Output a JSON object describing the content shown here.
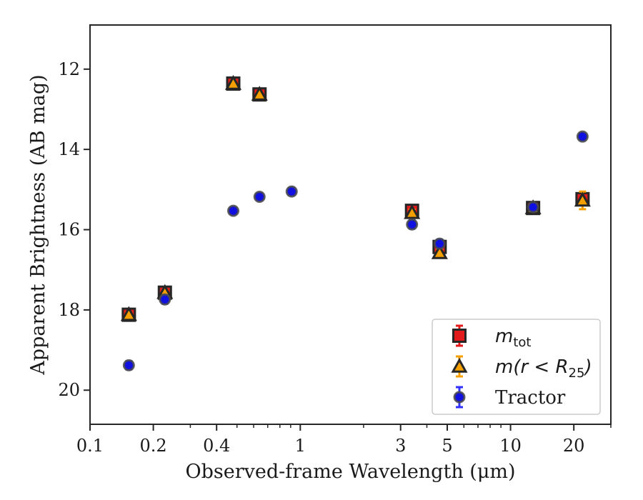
{
  "chart_data": {
    "type": "scatter",
    "title": "",
    "xlabel": "Observed-frame Wavelength (μm)",
    "ylabel": "Apparent Brightness (AB mag)",
    "x_scale": "log",
    "y_inverted": true,
    "xlim": [
      0.1,
      30
    ],
    "ylim": [
      20.85,
      10.9
    ],
    "x_ticks": [
      {
        "value": 0.1,
        "label": "0.1"
      },
      {
        "value": 0.2,
        "label": "0.2"
      },
      {
        "value": 0.4,
        "label": "0.4"
      },
      {
        "value": 1,
        "label": "1"
      },
      {
        "value": 3,
        "label": "3"
      },
      {
        "value": 5,
        "label": "5"
      },
      {
        "value": 10,
        "label": "10"
      },
      {
        "value": 20,
        "label": "20"
      }
    ],
    "y_ticks": [
      {
        "value": 12,
        "label": "12"
      },
      {
        "value": 14,
        "label": "14"
      },
      {
        "value": 16,
        "label": "16"
      },
      {
        "value": 18,
        "label": "18"
      },
      {
        "value": 20,
        "label": "20"
      }
    ],
    "grid": false,
    "legend_position": "bottom-right",
    "series": [
      {
        "name": "m_tot",
        "label_main": "m",
        "label_sub": "tot",
        "marker": "square",
        "color": "#e31a1c",
        "error_color": "#e31a1c",
        "points": [
          {
            "x": 0.153,
            "y": 18.12,
            "err": 0.1
          },
          {
            "x": 0.227,
            "y": 17.57,
            "err": 0.1
          },
          {
            "x": 0.48,
            "y": 12.36,
            "err": 0.08
          },
          {
            "x": 0.64,
            "y": 12.63,
            "err": 0.08
          },
          {
            "x": 3.4,
            "y": 15.53,
            "err": 0.1
          },
          {
            "x": 4.6,
            "y": 16.43,
            "err": 0.12
          },
          {
            "x": 12.8,
            "y": 15.46,
            "err": 0.08
          },
          {
            "x": 22.0,
            "y": 15.24,
            "err": 0.12
          }
        ]
      },
      {
        "name": "m(r<R_25)",
        "label_main": "m(r < R",
        "label_sub": "25",
        "label_tail": ")",
        "marker": "triangle",
        "color": "#f5a000",
        "error_color": "#f5a000",
        "points": [
          {
            "x": 0.153,
            "y": 18.12,
            "err": 0.05
          },
          {
            "x": 0.227,
            "y": 17.57,
            "err": 0.05
          },
          {
            "x": 0.48,
            "y": 12.36,
            "err": 0.05
          },
          {
            "x": 0.64,
            "y": 12.63,
            "err": 0.05
          },
          {
            "x": 3.4,
            "y": 15.58,
            "err": 0.08
          },
          {
            "x": 4.6,
            "y": 16.58,
            "err": 0.1
          },
          {
            "x": 12.8,
            "y": 15.46,
            "err": 0.05
          },
          {
            "x": 22.0,
            "y": 15.27,
            "err": 0.22
          }
        ]
      },
      {
        "name": "Tractor",
        "marker": "circle",
        "color": "#1010e0",
        "error_color": "#3030ff",
        "points": [
          {
            "x": 0.153,
            "y": 19.38,
            "err": 0.1
          },
          {
            "x": 0.227,
            "y": 17.74,
            "err": 0.1
          },
          {
            "x": 0.48,
            "y": 15.53,
            "err": 0.08
          },
          {
            "x": 0.64,
            "y": 15.18,
            "err": 0.08
          },
          {
            "x": 0.91,
            "y": 15.05,
            "err": 0.08
          },
          {
            "x": 3.4,
            "y": 15.87,
            "err": 0.1
          },
          {
            "x": 4.6,
            "y": 16.35,
            "err": 0.1
          },
          {
            "x": 12.8,
            "y": 15.44,
            "err": 0.08
          },
          {
            "x": 22.0,
            "y": 13.68,
            "err": 0.08
          }
        ]
      }
    ]
  }
}
